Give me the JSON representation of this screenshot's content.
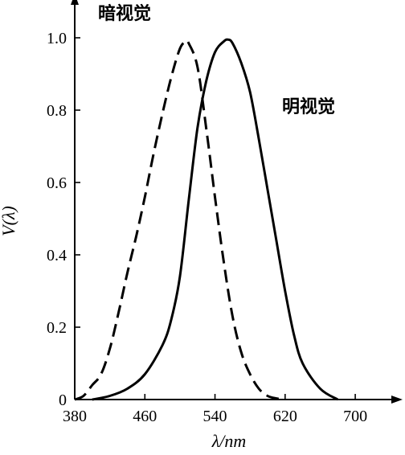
{
  "chart_data": {
    "type": "line",
    "xlabel": "λ/nm",
    "ylabel": "V(λ)",
    "xlim": [
      380,
      710
    ],
    "ylim": [
      0,
      1.1
    ],
    "x_ticks": [
      380,
      460,
      540,
      620,
      700
    ],
    "y_ticks": [
      {
        "value": 0,
        "label": "0"
      },
      {
        "value": 0.2,
        "label": "0.2"
      },
      {
        "value": 0.4,
        "label": "0.4"
      },
      {
        "value": 0.6,
        "label": "0.6"
      },
      {
        "value": 0.8,
        "label": "0.8"
      },
      {
        "value": 1.0,
        "label": "1.0"
      }
    ],
    "grid": false,
    "series": [
      {
        "name": "暗视觉",
        "style": "dashed",
        "color": "#000000",
        "x": [
          380,
          390,
          400,
          410,
          420,
          430,
          440,
          450,
          460,
          470,
          480,
          490,
          500,
          507,
          510,
          520,
          530,
          540,
          550,
          560,
          570,
          580,
          590,
          600,
          610,
          620
        ],
        "y": [
          0.0,
          0.01,
          0.04,
          0.07,
          0.14,
          0.24,
          0.35,
          0.45,
          0.56,
          0.68,
          0.79,
          0.89,
          0.97,
          0.99,
          0.985,
          0.92,
          0.75,
          0.56,
          0.38,
          0.23,
          0.13,
          0.07,
          0.03,
          0.01,
          0.003,
          0.0
        ]
      },
      {
        "name": "明视觉",
        "style": "solid",
        "color": "#000000",
        "x": [
          400,
          420,
          440,
          460,
          480,
          490,
          500,
          510,
          520,
          530,
          540,
          550,
          555,
          560,
          570,
          580,
          590,
          600,
          610,
          620,
          630,
          640,
          660,
          680
        ],
        "y": [
          0.0,
          0.01,
          0.03,
          0.07,
          0.15,
          0.22,
          0.34,
          0.55,
          0.75,
          0.88,
          0.96,
          0.99,
          0.995,
          0.985,
          0.93,
          0.85,
          0.72,
          0.58,
          0.44,
          0.3,
          0.18,
          0.1,
          0.03,
          0.0
        ]
      }
    ]
  }
}
